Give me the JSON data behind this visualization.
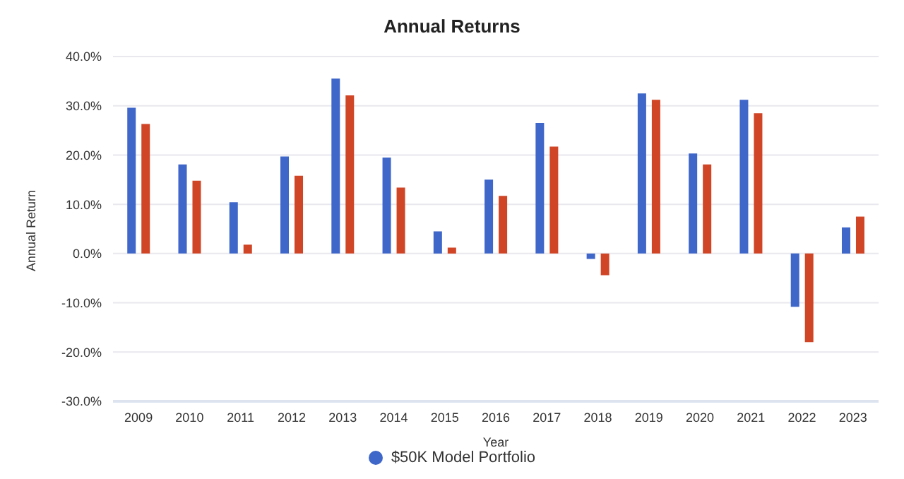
{
  "chart_data": {
    "type": "bar",
    "title": "Annual Returns",
    "xlabel": "Year",
    "ylabel": "Annual Return",
    "categories": [
      "2009",
      "2010",
      "2011",
      "2012",
      "2013",
      "2014",
      "2015",
      "2016",
      "2017",
      "2018",
      "2019",
      "2020",
      "2021",
      "2022",
      "2023"
    ],
    "series": [
      {
        "name": "$50K Model Portfolio",
        "color": "#3f66c9",
        "values": [
          29.6,
          18.1,
          10.4,
          19.7,
          35.5,
          19.5,
          4.5,
          15.0,
          26.5,
          -1.1,
          32.5,
          20.3,
          31.2,
          -10.8,
          5.3
        ]
      },
      {
        "color": "#d04526",
        "values": [
          26.3,
          14.8,
          1.8,
          15.8,
          32.1,
          13.4,
          1.2,
          11.7,
          21.7,
          -4.4,
          31.2,
          18.1,
          28.5,
          -18.0,
          7.5
        ]
      }
    ],
    "ylim": [
      -30,
      40
    ],
    "yticks": [
      {
        "value": -30,
        "label": "-30.0%"
      },
      {
        "value": -20,
        "label": "-20.0%"
      },
      {
        "value": -10,
        "label": "-10.0%"
      },
      {
        "value": 0,
        "label": "0.0%"
      },
      {
        "value": 10,
        "label": "10.0%"
      },
      {
        "value": 20,
        "label": "20.0%"
      },
      {
        "value": 30,
        "label": "30.0%"
      },
      {
        "value": 40,
        "label": "40.0%"
      }
    ],
    "grid": "y",
    "legend": "bottom"
  }
}
